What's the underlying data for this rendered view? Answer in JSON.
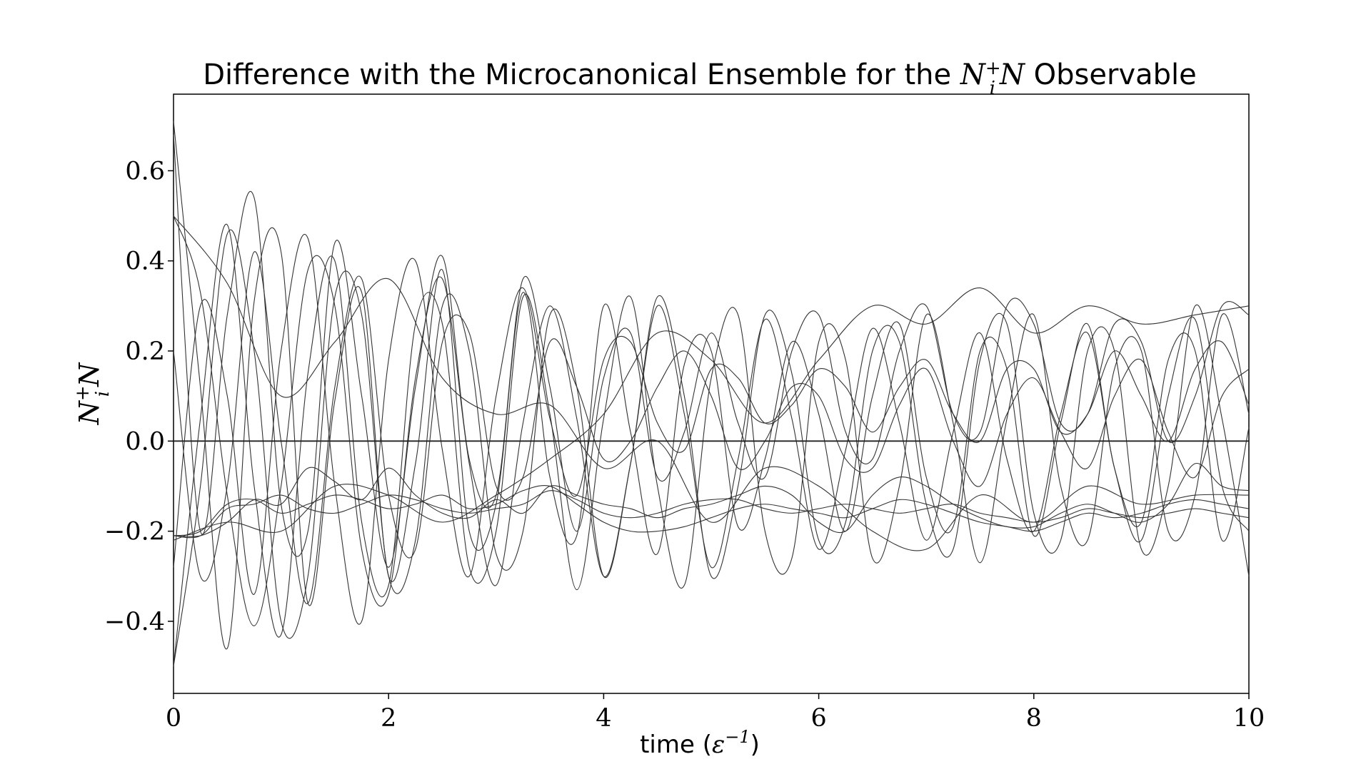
{
  "chart_data": {
    "type": "line",
    "title": {
      "prefix": "Difference with the Microcanonical Ensemble for the ",
      "math_base": "N",
      "math_sup": "+",
      "math_sub": "i",
      "math_tail": "N",
      "suffix": " Observable"
    },
    "xlabel": {
      "text": "time (",
      "math": "ε",
      "sup": "−1",
      "close": ")"
    },
    "ylabel": {
      "math_base": "N",
      "math_sup": "+",
      "math_sub": "i",
      "math_tail": "N"
    },
    "xlim": [
      0,
      10
    ],
    "ylim": [
      -0.56,
      0.77
    ],
    "x_ticks": [
      0,
      2,
      4,
      6,
      8,
      10
    ],
    "x_tick_labels": [
      "0",
      "2",
      "4",
      "6",
      "8",
      "10"
    ],
    "y_ticks": [
      -0.4,
      -0.2,
      0.0,
      0.2,
      0.4,
      0.6
    ],
    "y_tick_labels": [
      "−0.4",
      "−0.2",
      "0.0",
      "0.2",
      "0.4",
      "0.6"
    ],
    "grid": false,
    "line_color": "#333333",
    "baseline_color": "#222222",
    "series": [
      {
        "x": [
          0,
          0.25,
          0.5,
          0.75,
          1,
          1.25,
          1.5,
          1.75,
          2,
          2.25,
          2.5,
          2.75,
          3,
          3.25,
          3.5,
          3.75,
          4,
          4.25,
          4.5,
          4.75,
          5,
          5.25,
          5.5,
          5.75,
          6,
          6.25,
          6.5,
          6.75,
          7,
          7.25,
          7.5,
          7.75,
          8,
          8.25,
          8.5,
          8.75,
          9,
          9.25,
          9.5,
          9.75,
          10
        ],
        "y": [
          0.71,
          0.12,
          -0.46,
          0.31,
          0.42,
          -0.36,
          0.09,
          0.33,
          -0.3,
          -0.05,
          0.38,
          -0.2,
          -0.14,
          0.33,
          -0.08,
          -0.21,
          0.3,
          0.02,
          -0.25,
          0.17,
          0.2,
          -0.19,
          -0.04,
          0.22,
          0.06,
          -0.2,
          0.1,
          0.26,
          -0.08,
          -0.19,
          0.2,
          0.16,
          -0.21,
          0.04,
          0.26,
          -0.06,
          -0.18,
          0.18,
          0.2,
          -0.22,
          0.03
        ]
      },
      {
        "x": [
          0,
          0.25,
          0.5,
          0.75,
          1,
          1.25,
          1.5,
          1.75,
          2,
          2.25,
          2.5,
          2.75,
          3,
          3.25,
          3.5,
          3.75,
          4,
          4.25,
          4.5,
          4.75,
          5,
          5.25,
          5.5,
          5.75,
          6,
          6.25,
          6.5,
          6.75,
          7,
          7.25,
          7.5,
          7.75,
          8,
          8.25,
          8.5,
          8.75,
          9,
          9.25,
          9.5,
          9.75,
          10
        ],
        "y": [
          0.5,
          0.33,
          -0.12,
          -0.41,
          -0.1,
          0.38,
          0.3,
          -0.24,
          -0.34,
          0.14,
          0.36,
          -0.05,
          -0.32,
          0.04,
          0.3,
          0.05,
          -0.3,
          -0.05,
          0.3,
          0.06,
          -0.28,
          -0.04,
          0.27,
          0.05,
          -0.24,
          -0.02,
          0.25,
          0.04,
          -0.22,
          0.02,
          0.24,
          -0.04,
          -0.2,
          0.06,
          0.24,
          -0.06,
          -0.22,
          0.1,
          0.27,
          -0.1,
          -0.2
        ]
      },
      {
        "x": [
          0,
          0.25,
          0.5,
          0.75,
          1,
          1.25,
          1.5,
          1.75,
          2,
          2.25,
          2.5,
          2.75,
          3,
          3.25,
          3.5,
          3.75,
          4,
          4.25,
          4.5,
          4.75,
          5,
          5.25,
          5.5,
          5.75,
          6,
          6.25,
          6.5,
          6.75,
          7,
          7.25,
          7.5,
          7.75,
          8,
          8.25,
          8.5,
          8.75,
          9,
          9.25,
          9.5,
          9.75,
          10
        ],
        "y": [
          -0.5,
          -0.1,
          0.46,
          0.2,
          -0.4,
          -0.3,
          0.32,
          0.28,
          -0.3,
          -0.22,
          0.3,
          0.2,
          -0.25,
          -0.2,
          0.28,
          0.12,
          -0.3,
          -0.05,
          0.32,
          0.1,
          -0.3,
          -0.1,
          0.28,
          0.15,
          -0.22,
          -0.18,
          0.2,
          0.22,
          -0.14,
          -0.24,
          0.18,
          0.26,
          -0.16,
          -0.22,
          0.2,
          0.2,
          -0.24,
          -0.1,
          0.3,
          0.05,
          -0.3
        ]
      },
      {
        "x": [
          0,
          0.25,
          0.5,
          0.75,
          1,
          1.25,
          1.5,
          1.75,
          2,
          2.25,
          2.5,
          2.75,
          3,
          3.25,
          3.5,
          3.75,
          4,
          4.25,
          4.5,
          4.75,
          5,
          5.25,
          5.5,
          5.75,
          6,
          6.25,
          6.5,
          6.75,
          7,
          7.25,
          7.5,
          7.75,
          8,
          8.25,
          8.5,
          8.75,
          9,
          9.25,
          9.5,
          9.75,
          10
        ],
        "y": [
          -0.5,
          0.05,
          0.48,
          -0.1,
          -0.43,
          0.15,
          0.4,
          -0.18,
          -0.32,
          0.26,
          0.26,
          -0.28,
          -0.2,
          0.32,
          0.06,
          -0.33,
          0.05,
          0.32,
          -0.1,
          -0.32,
          0.14,
          0.28,
          -0.2,
          -0.26,
          0.22,
          0.18,
          -0.26,
          -0.1,
          0.28,
          0.04,
          -0.27,
          0.05,
          0.28,
          -0.1,
          -0.22,
          0.16,
          0.2,
          -0.2,
          -0.12,
          0.28,
          0.06
        ]
      },
      {
        "x": [
          0,
          0.25,
          0.5,
          0.75,
          1,
          1.25,
          1.5,
          1.75,
          2,
          2.25,
          2.5,
          2.75,
          3,
          3.25,
          3.5,
          3.75,
          4,
          4.25,
          4.5,
          4.75,
          5,
          5.25,
          5.5,
          5.75,
          6,
          6.25,
          6.5,
          6.75,
          7,
          7.25,
          7.5,
          7.75,
          8,
          8.25,
          8.5,
          8.75,
          9,
          9.25,
          9.5,
          9.75,
          10
        ],
        "y": [
          0.68,
          -0.2,
          0.28,
          0.54,
          -0.14,
          -0.2,
          0.44,
          0.1,
          -0.28,
          0.12,
          0.41,
          -0.04,
          -0.12,
          0.36,
          0.12,
          -0.2,
          0.14,
          0.24,
          -0.08,
          0.02,
          0.24,
          0.04,
          -0.08,
          0.2,
          0.28,
          0.02,
          -0.04,
          0.2,
          0.3,
          0.06,
          0.02,
          0.3,
          0.26,
          0.04,
          0.06,
          0.26,
          0.22,
          0.0,
          0.1,
          0.3,
          0.28
        ]
      },
      {
        "x": [
          0,
          0.25,
          0.5,
          0.75,
          1,
          1.25,
          1.5,
          1.75,
          2,
          2.25,
          2.5,
          2.75,
          3,
          3.25,
          3.5,
          3.75,
          4,
          4.25,
          4.5,
          4.75,
          5,
          5.25,
          5.5,
          5.75,
          6,
          6.25,
          6.5,
          6.75,
          7,
          7.25,
          7.5,
          7.75,
          8,
          8.25,
          8.5,
          8.75,
          9,
          9.25,
          9.5,
          9.75,
          10
        ],
        "y": [
          -0.28,
          0.3,
          0.1,
          -0.34,
          0.2,
          0.45,
          -0.1,
          -0.4,
          0.18,
          0.4,
          -0.02,
          -0.3,
          0.1,
          0.34,
          0.05,
          -0.12,
          0.18,
          0.22,
          0.04,
          -0.02,
          0.16,
          0.14,
          0.04,
          0.08,
          0.16,
          0.12,
          0.02,
          0.12,
          0.18,
          0.06,
          0.0,
          0.16,
          0.16,
          0.02,
          0.06,
          0.2,
          0.1,
          0.0,
          0.16,
          0.22,
          0.08
        ]
      },
      {
        "x": [
          0,
          0.25,
          0.5,
          0.75,
          1,
          1.25,
          1.5,
          1.75,
          2,
          2.25,
          2.5,
          2.75,
          3,
          3.25,
          3.5,
          3.75,
          4,
          4.25,
          4.5,
          4.75,
          5,
          5.25,
          5.5,
          5.75,
          6,
          6.25,
          6.5,
          6.75,
          7,
          7.25,
          7.5,
          7.75,
          8,
          8.25,
          8.5,
          8.75,
          9,
          9.25,
          9.5,
          9.75,
          10
        ],
        "y": [
          0.2,
          -0.3,
          -0.1,
          0.42,
          0.0,
          -0.36,
          0.12,
          0.36,
          -0.12,
          -0.24,
          0.22,
          0.24,
          -0.1,
          -0.08,
          0.22,
          0.12,
          -0.04,
          0.0,
          0.12,
          0.2,
          0.1,
          -0.06,
          0.0,
          0.12,
          0.1,
          -0.04,
          -0.06,
          0.08,
          0.16,
          0.0,
          -0.1,
          0.06,
          0.14,
          0.02,
          -0.06,
          0.1,
          0.18,
          0.02,
          -0.08,
          0.1,
          0.16
        ]
      },
      {
        "x": [
          0,
          0.25,
          0.5,
          0.75,
          1,
          1.25,
          1.5,
          1.75,
          2,
          2.25,
          2.5,
          2.75,
          3,
          3.25,
          3.5,
          3.75,
          4,
          4.25,
          4.5,
          4.75,
          5,
          5.25,
          5.5,
          5.75,
          6,
          6.25,
          6.5,
          6.75,
          7,
          7.25,
          7.5,
          7.75,
          8,
          8.25,
          8.5,
          8.75,
          9,
          9.25,
          9.5,
          9.75,
          10
        ],
        "y": [
          -0.21,
          -0.21,
          -0.18,
          -0.13,
          -0.14,
          -0.06,
          -0.09,
          -0.13,
          -0.06,
          -0.12,
          -0.16,
          -0.17,
          -0.13,
          -0.16,
          -0.1,
          -0.12,
          -0.14,
          -0.15,
          -0.17,
          -0.15,
          -0.14,
          -0.12,
          -0.1,
          -0.12,
          -0.18,
          -0.2,
          -0.12,
          -0.08,
          -0.1,
          -0.14,
          -0.17,
          -0.19,
          -0.19,
          -0.16,
          -0.14,
          -0.16,
          -0.18,
          -0.14,
          -0.05,
          -0.1,
          -0.11
        ]
      },
      {
        "x": [
          0,
          0.25,
          0.5,
          0.75,
          1,
          1.25,
          1.5,
          1.75,
          2,
          2.25,
          2.5,
          2.75,
          3,
          3.25,
          3.5,
          3.75,
          4,
          4.25,
          4.5,
          4.75,
          5,
          5.25,
          5.5,
          5.75,
          6,
          6.25,
          6.5,
          6.75,
          7,
          7.25,
          7.5,
          7.75,
          8,
          8.25,
          8.5,
          8.75,
          9,
          9.25,
          9.5,
          9.75,
          10
        ],
        "y": [
          -0.21,
          -0.2,
          -0.14,
          -0.13,
          -0.16,
          -0.14,
          -0.12,
          -0.13,
          -0.15,
          -0.14,
          -0.12,
          -0.15,
          -0.14,
          -0.11,
          -0.1,
          -0.14,
          -0.18,
          -0.2,
          -0.2,
          -0.19,
          -0.17,
          -0.15,
          -0.14,
          -0.15,
          -0.16,
          -0.17,
          -0.15,
          -0.13,
          -0.14,
          -0.16,
          -0.18,
          -0.19,
          -0.2,
          -0.18,
          -0.16,
          -0.17,
          -0.16,
          -0.14,
          -0.13,
          -0.14,
          -0.15
        ]
      },
      {
        "x": [
          0,
          0.25,
          0.5,
          0.75,
          1,
          1.25,
          1.5,
          1.75,
          2,
          2.25,
          2.5,
          2.75,
          3,
          3.25,
          3.5,
          3.75,
          4,
          4.25,
          4.5,
          4.75,
          5,
          5.25,
          5.5,
          5.75,
          6,
          6.25,
          6.5,
          6.75,
          7,
          7.25,
          7.5,
          7.75,
          8,
          8.25,
          8.5,
          8.75,
          9,
          9.25,
          9.5,
          9.75,
          10
        ],
        "y": [
          -0.21,
          -0.21,
          -0.15,
          -0.14,
          -0.12,
          -0.15,
          -0.16,
          -0.14,
          -0.12,
          -0.13,
          -0.15,
          -0.16,
          -0.15,
          -0.14,
          -0.11,
          -0.13,
          -0.16,
          -0.17,
          -0.16,
          -0.14,
          -0.13,
          -0.13,
          -0.15,
          -0.16,
          -0.15,
          -0.14,
          -0.15,
          -0.16,
          -0.15,
          -0.14,
          -0.16,
          -0.17,
          -0.18,
          -0.17,
          -0.15,
          -0.16,
          -0.17,
          -0.16,
          -0.15,
          -0.16,
          -0.17
        ]
      },
      {
        "x": [
          0,
          0.5,
          1,
          1.5,
          2,
          2.5,
          3,
          3.5,
          4,
          4.5,
          5,
          5.5,
          6,
          6.5,
          7,
          7.5,
          8,
          8.5,
          9,
          9.5,
          10
        ],
        "y": [
          -0.22,
          -0.18,
          -0.2,
          -0.1,
          -0.12,
          -0.18,
          -0.12,
          -0.04,
          0.06,
          0.24,
          0.18,
          0.04,
          0.18,
          0.3,
          0.26,
          0.34,
          0.24,
          0.3,
          0.26,
          0.28,
          0.3
        ]
      },
      {
        "x": [
          0,
          0.5,
          1,
          1.5,
          2,
          2.5,
          3,
          3.5,
          4,
          4.5,
          5,
          5.5,
          6,
          6.5,
          7,
          7.5,
          8,
          8.5,
          9,
          9.5,
          10
        ],
        "y": [
          0.5,
          0.35,
          0.1,
          0.22,
          0.36,
          0.14,
          0.06,
          0.08,
          -0.06,
          0.0,
          -0.18,
          -0.06,
          -0.1,
          -0.2,
          -0.24,
          -0.12,
          -0.18,
          -0.1,
          -0.14,
          -0.12,
          -0.12
        ]
      }
    ]
  }
}
